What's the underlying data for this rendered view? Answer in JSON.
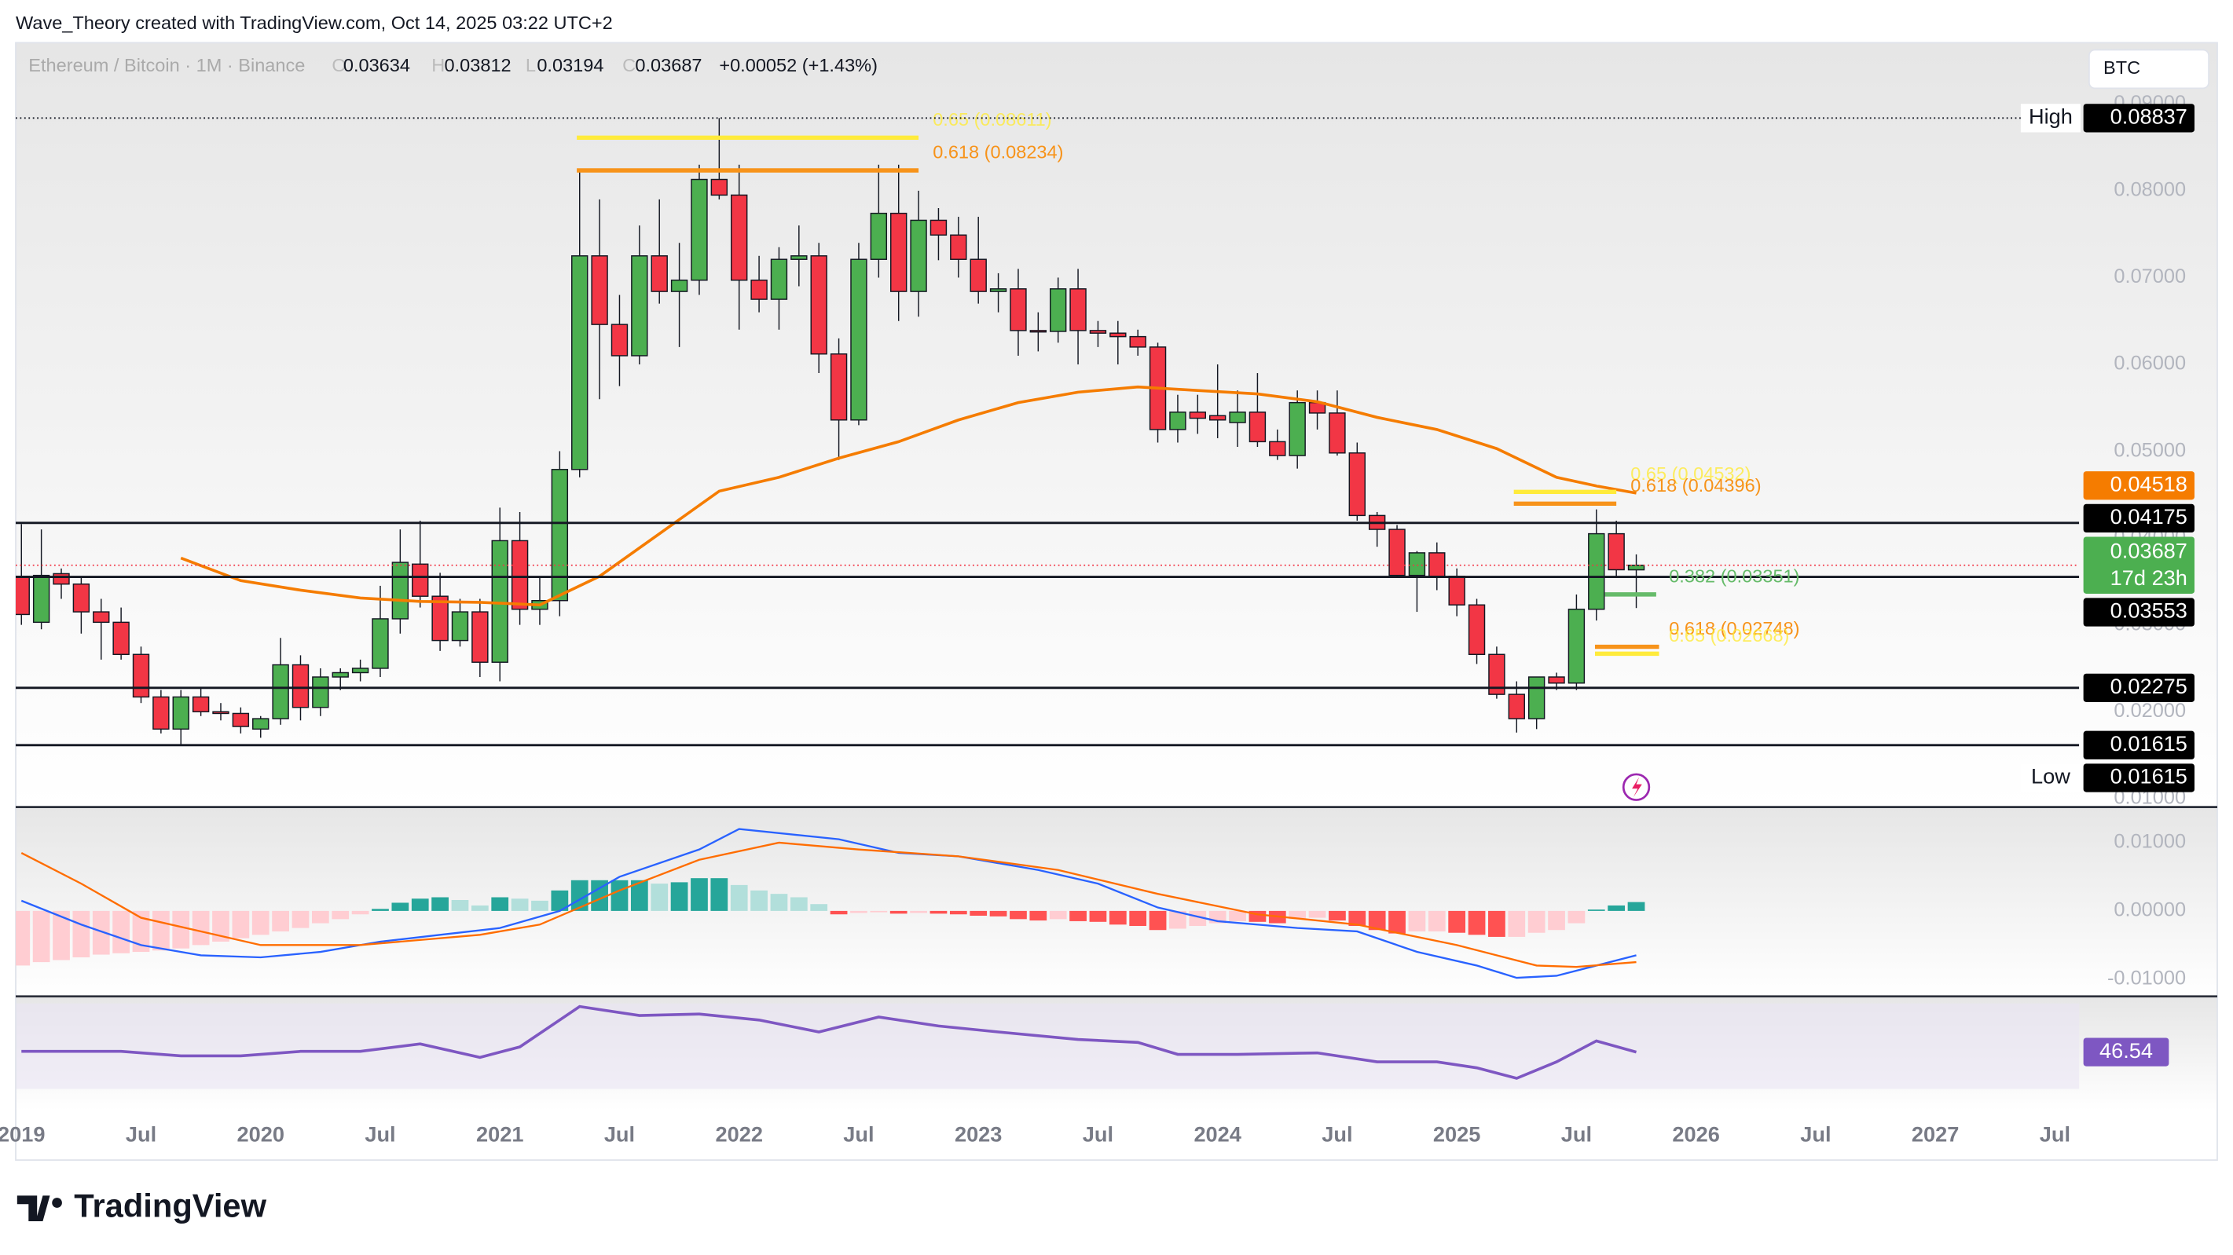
{
  "header": {
    "attribution": "Wave_Theory created with TradingView.com, Oct 14, 2025 03:22 UTC+2",
    "currency": "BTC",
    "logo": "TradingView"
  },
  "chart_data": [
    {
      "type": "candlestick",
      "symbol": "Ethereum / Bitcoin · 1M · Binance",
      "ohlc_labels": [
        "O",
        "H",
        "L",
        "C"
      ],
      "change": "+0.00052 (+1.43%)",
      "x": [
        "2019-01",
        "2019-02",
        "2019-03",
        "2019-04",
        "2019-05",
        "2019-06",
        "2019-07",
        "2019-08",
        "2019-09",
        "2019-10",
        "2019-11",
        "2019-12",
        "2020-01",
        "2020-02",
        "2020-03",
        "2020-04",
        "2020-05",
        "2020-06",
        "2020-07",
        "2020-08",
        "2020-09",
        "2020-10",
        "2020-11",
        "2020-12",
        "2021-01",
        "2021-02",
        "2021-03",
        "2021-04",
        "2021-05",
        "2021-06",
        "2021-07",
        "2021-08",
        "2021-09",
        "2021-10",
        "2021-11",
        "2021-12",
        "2022-01",
        "2022-02",
        "2022-03",
        "2022-04",
        "2022-05",
        "2022-06",
        "2022-07",
        "2022-08",
        "2022-09",
        "2022-10",
        "2022-11",
        "2022-12",
        "2023-01",
        "2023-02",
        "2023-03",
        "2023-04",
        "2023-05",
        "2023-06",
        "2023-07",
        "2023-08",
        "2023-09",
        "2023-10",
        "2023-11",
        "2023-12",
        "2024-01",
        "2024-02",
        "2024-03",
        "2024-04",
        "2024-05",
        "2024-06",
        "2024-07",
        "2024-08",
        "2024-09",
        "2024-10",
        "2024-11",
        "2024-12",
        "2025-01",
        "2025-02",
        "2025-03",
        "2025-04",
        "2025-05",
        "2025-06",
        "2025-07",
        "2025-08",
        "2025-09",
        "2025-10"
      ],
      "open": [
        0.0356,
        0.0303,
        0.0359,
        0.0347,
        0.0315,
        0.0303,
        0.0266,
        0.0217,
        0.018,
        0.0217,
        0.02,
        0.0198,
        0.018,
        0.0192,
        0.0254,
        0.0205,
        0.024,
        0.0245,
        0.025,
        0.0307,
        0.037,
        0.0333,
        0.0282,
        0.0315,
        0.0257,
        0.0397,
        0.0318,
        0.0328,
        0.0479,
        0.0725,
        0.0646,
        0.061,
        0.0725,
        0.0684,
        0.0697,
        0.0813,
        0.0795,
        0.0697,
        0.0675,
        0.0721,
        0.0725,
        0.0612,
        0.0536,
        0.0721,
        0.0774,
        0.0684,
        0.0766,
        0.0749,
        0.0721,
        0.0684,
        0.0687,
        0.0639,
        0.0638,
        0.0687,
        0.0639,
        0.0636,
        0.0632,
        0.062,
        0.0525,
        0.0545,
        0.0541,
        0.0533,
        0.0545,
        0.0511,
        0.0495,
        0.0556,
        0.0544,
        0.0498,
        0.0426,
        0.041,
        0.0357,
        0.0383,
        0.0356,
        0.0323,
        0.0266,
        0.022,
        0.0192,
        0.024,
        0.0233,
        0.0318,
        0.0405,
        0.03634
      ],
      "high": [
        0.0416,
        0.041,
        0.0365,
        0.0355,
        0.033,
        0.032,
        0.0275,
        0.0225,
        0.0225,
        0.0228,
        0.021,
        0.0205,
        0.0195,
        0.0285,
        0.0265,
        0.025,
        0.025,
        0.026,
        0.0345,
        0.041,
        0.042,
        0.036,
        0.033,
        0.033,
        0.0435,
        0.043,
        0.0355,
        0.05,
        0.0825,
        0.079,
        0.068,
        0.076,
        0.079,
        0.074,
        0.083,
        0.08837,
        0.083,
        0.0725,
        0.0735,
        0.076,
        0.074,
        0.063,
        0.074,
        0.083,
        0.083,
        0.08,
        0.078,
        0.077,
        0.077,
        0.0705,
        0.071,
        0.066,
        0.07,
        0.071,
        0.065,
        0.065,
        0.064,
        0.0625,
        0.0565,
        0.0565,
        0.06,
        0.057,
        0.059,
        0.0525,
        0.057,
        0.057,
        0.057,
        0.051,
        0.043,
        0.0415,
        0.0385,
        0.0395,
        0.0365,
        0.033,
        0.0275,
        0.0235,
        0.024,
        0.0245,
        0.0335,
        0.0433,
        0.042,
        0.03812
      ],
      "low": [
        0.03,
        0.0295,
        0.033,
        0.029,
        0.026,
        0.026,
        0.021,
        0.0175,
        0.01615,
        0.0195,
        0.019,
        0.0175,
        0.017,
        0.0185,
        0.019,
        0.0195,
        0.0225,
        0.0235,
        0.024,
        0.029,
        0.032,
        0.027,
        0.0275,
        0.024,
        0.0235,
        0.03,
        0.03,
        0.031,
        0.047,
        0.056,
        0.0575,
        0.06,
        0.067,
        0.062,
        0.068,
        0.079,
        0.064,
        0.066,
        0.064,
        0.069,
        0.059,
        0.049,
        0.053,
        0.07,
        0.065,
        0.0655,
        0.072,
        0.07,
        0.067,
        0.066,
        0.061,
        0.0615,
        0.0625,
        0.06,
        0.062,
        0.06,
        0.061,
        0.051,
        0.051,
        0.052,
        0.0515,
        0.0505,
        0.0505,
        0.049,
        0.048,
        0.0525,
        0.0495,
        0.042,
        0.039,
        0.0355,
        0.0315,
        0.034,
        0.031,
        0.0255,
        0.0215,
        0.0176,
        0.018,
        0.0225,
        0.0225,
        0.0305,
        0.0355,
        0.03194
      ],
      "close": [
        0.0312,
        0.0357,
        0.0347,
        0.0315,
        0.0303,
        0.0266,
        0.0217,
        0.018,
        0.0217,
        0.02,
        0.0198,
        0.0183,
        0.0192,
        0.0254,
        0.0205,
        0.024,
        0.0245,
        0.025,
        0.0307,
        0.0372,
        0.0333,
        0.0282,
        0.0315,
        0.0257,
        0.0397,
        0.0318,
        0.0328,
        0.0479,
        0.0725,
        0.0646,
        0.061,
        0.0725,
        0.0684,
        0.0697,
        0.0813,
        0.0795,
        0.0697,
        0.0675,
        0.0721,
        0.0725,
        0.0612,
        0.0536,
        0.0721,
        0.0774,
        0.0684,
        0.0766,
        0.0749,
        0.0721,
        0.0684,
        0.0687,
        0.0639,
        0.0638,
        0.0687,
        0.0639,
        0.0636,
        0.0632,
        0.062,
        0.0525,
        0.0545,
        0.0538,
        0.0536,
        0.0545,
        0.0511,
        0.0495,
        0.0556,
        0.0544,
        0.0498,
        0.0426,
        0.041,
        0.0357,
        0.0383,
        0.0356,
        0.0323,
        0.0266,
        0.022,
        0.0192,
        0.024,
        0.0233,
        0.0318,
        0.0405,
        0.03635,
        0.03687
      ],
      "up_color": "#4caf50",
      "down_color": "#f23645",
      "ylim": [
        0.00902,
        0.09705
      ],
      "yticks": [
        {
          "value": 0.09,
          "label": "0.09000"
        },
        {
          "value": 0.08,
          "label": "0.08000"
        },
        {
          "value": 0.07,
          "label": "0.07000"
        },
        {
          "value": 0.06,
          "label": "0.06000"
        },
        {
          "value": 0.05,
          "label": "0.05000"
        },
        {
          "value": 0.04,
          "label": "0.04000"
        },
        {
          "value": 0.03,
          "label": "0.03000"
        },
        {
          "value": 0.02,
          "label": "0.02000"
        },
        {
          "value": 0.01,
          "label": "0.01000"
        }
      ],
      "xlim": [
        "2019-01",
        "2027-08"
      ],
      "xticks": [
        {
          "value": "2019-01",
          "label": "2019"
        },
        {
          "value": "2019-07",
          "label": "Jul"
        },
        {
          "value": "2020-01",
          "label": "2020"
        },
        {
          "value": "2020-07",
          "label": "Jul"
        },
        {
          "value": "2021-01",
          "label": "2021"
        },
        {
          "value": "2021-07",
          "label": "Jul"
        },
        {
          "value": "2022-01",
          "label": "2022"
        },
        {
          "value": "2022-07",
          "label": "Jul"
        },
        {
          "value": "2023-01",
          "label": "2023"
        },
        {
          "value": "2023-07",
          "label": "Jul"
        },
        {
          "value": "2024-01",
          "label": "2024"
        },
        {
          "value": "2024-07",
          "label": "Jul"
        },
        {
          "value": "2025-01",
          "label": "2025"
        },
        {
          "value": "2025-07",
          "label": "Jul"
        },
        {
          "value": "2026-01",
          "label": "2026"
        },
        {
          "value": "2026-07",
          "label": "Jul"
        },
        {
          "value": "2027-01",
          "label": "2027"
        },
        {
          "value": "2027-07",
          "label": "Jul"
        }
      ],
      "lines": [
        {
          "color": "#f57c00",
          "x": [
            "2019-09",
            "2019-12",
            "2020-03",
            "2020-06",
            "2020-09",
            "2020-12",
            "2021-03",
            "2021-06",
            "2021-09",
            "2021-12",
            "2022-03",
            "2022-06",
            "2022-09",
            "2022-12",
            "2023-03",
            "2023-06",
            "2023-09",
            "2023-12",
            "2024-03",
            "2024-06",
            "2024-09",
            "2024-12",
            "2025-03",
            "2025-06",
            "2025-08",
            "2025-10"
          ],
          "values": [
            0.0377,
            0.0351,
            0.034,
            0.0331,
            0.0327,
            0.0326,
            0.0323,
            0.0356,
            0.0405,
            0.0454,
            0.047,
            0.0492,
            0.0511,
            0.0536,
            0.0556,
            0.0568,
            0.0574,
            0.057,
            0.0566,
            0.0557,
            0.0539,
            0.0525,
            0.0503,
            0.047,
            0.046,
            0.04518
          ]
        }
      ],
      "levels": [
        0.04175,
        0.03553,
        0.02275,
        0.01615
      ],
      "fib_levels": [
        {
          "label": "0.65 (0.08611)",
          "value": 0.08611,
          "color": "#ffeb3b"
        },
        {
          "label": "0.618 (0.08234)",
          "value": 0.08234,
          "color": "#f7931a"
        },
        {
          "label": "0.65 (0.04532)",
          "value": 0.04532,
          "color": "#ffeb3b"
        },
        {
          "label": "0.618 (0.04396)",
          "value": 0.04396,
          "color": "#f7931a"
        },
        {
          "label": "0.382 (0.03351)",
          "value": 0.03351,
          "color": "#66bb6a"
        },
        {
          "label": "0.618 (0.02748)",
          "value": 0.02748,
          "color": "#f7931a"
        },
        {
          "label": "0.65 (0.02668)",
          "value": 0.02668,
          "color": "#ffeb3b"
        }
      ],
      "price_labels": [
        {
          "value": 0.08837,
          "tag": "High",
          "color": "#000000"
        },
        {
          "value": 0.04518,
          "color": "#f57c00"
        },
        {
          "value": 0.04175,
          "color": "#000000"
        },
        {
          "value": 0.03687,
          "countdown": "17d 23h",
          "color": "#4caf50"
        },
        {
          "value": 0.03553,
          "color": "#000000"
        },
        {
          "value": 0.02275,
          "color": "#000000"
        },
        {
          "value": 0.01615,
          "color": "#000000"
        },
        {
          "value": 0.01615,
          "tag": "Low",
          "color": "#000000"
        }
      ]
    },
    {
      "type": "macd",
      "ylim": [
        -0.0121,
        0.0148
      ],
      "yticks": [
        {
          "value": 0.01,
          "label": "0.01000"
        },
        {
          "value": 0,
          "label": "0.00000"
        },
        {
          "value": -0.01,
          "label": "-0.01000"
        }
      ],
      "histogram": [
        -0.008,
        -0.0075,
        -0.0072,
        -0.0068,
        -0.0064,
        -0.0062,
        -0.006,
        -0.0058,
        -0.0055,
        -0.005,
        -0.0045,
        -0.004,
        -0.0035,
        -0.003,
        -0.0025,
        -0.0018,
        -0.0012,
        -0.0005,
        0.0003,
        0.0012,
        0.0018,
        0.002,
        0.0016,
        0.0008,
        0.002,
        0.0018,
        0.0015,
        0.003,
        0.0045,
        0.0045,
        0.0045,
        0.0045,
        0.004,
        0.0042,
        0.0048,
        0.0048,
        0.0038,
        0.003,
        0.0025,
        0.002,
        0.001,
        -0.0005,
        -0.0003,
        -0.0002,
        -0.0004,
        -0.0003,
        -0.0004,
        -0.0005,
        -0.0007,
        -0.0008,
        -0.0012,
        -0.0014,
        -0.0012,
        -0.0015,
        -0.0016,
        -0.002,
        -0.0022,
        -0.0028,
        -0.0026,
        -0.0022,
        -0.0018,
        -0.0015,
        -0.0016,
        -0.0018,
        -0.0012,
        -0.001,
        -0.0014,
        -0.0022,
        -0.0028,
        -0.0033,
        -0.003,
        -0.003,
        -0.0032,
        -0.0035,
        -0.0038,
        -0.0038,
        -0.0032,
        -0.0028,
        -0.0018,
        0.0002,
        0.0008,
        0.0013
      ],
      "histogram_colors": {
        "rising_above": "#26a69a",
        "falling_above": "#b2dfdb",
        "rising_below": "#ffcdd2",
        "falling_below": "#ff5252"
      },
      "series": [
        {
          "color": "#2962ff",
          "x": [
            "2019-01",
            "2019-04",
            "2019-07",
            "2019-10",
            "2020-01",
            "2020-04",
            "2020-07",
            "2020-10",
            "2021-01",
            "2021-04",
            "2021-07",
            "2021-11",
            "2022-01",
            "2022-06",
            "2022-09",
            "2022-12",
            "2023-04",
            "2023-07",
            "2023-10",
            "2024-01",
            "2024-05",
            "2024-08",
            "2024-11",
            "2025-02",
            "2025-04",
            "2025-06",
            "2025-10"
          ],
          "values": [
            0.0015,
            -0.002,
            -0.005,
            -0.0065,
            -0.0068,
            -0.006,
            -0.0045,
            -0.0035,
            -0.0025,
            0.0,
            0.005,
            0.009,
            0.012,
            0.0105,
            0.0085,
            0.008,
            0.006,
            0.004,
            0.0005,
            -0.0015,
            -0.0025,
            -0.003,
            -0.006,
            -0.008,
            -0.0098,
            -0.0095,
            -0.0065
          ]
        },
        {
          "color": "#ff6d00",
          "x": [
            "2019-01",
            "2019-04",
            "2019-07",
            "2020-01",
            "2020-06",
            "2020-12",
            "2021-03",
            "2021-07",
            "2021-11",
            "2022-03",
            "2022-07",
            "2022-12",
            "2023-05",
            "2023-10",
            "2024-03",
            "2024-08",
            "2025-01",
            "2025-05",
            "2025-07",
            "2025-10"
          ],
          "values": [
            0.0085,
            0.004,
            -0.001,
            -0.005,
            -0.005,
            -0.0035,
            -0.002,
            0.003,
            0.0075,
            0.01,
            0.009,
            0.008,
            0.006,
            0.0025,
            -0.0005,
            -0.002,
            -0.005,
            -0.008,
            -0.0082,
            -0.0075
          ]
        }
      ]
    },
    {
      "type": "line",
      "ylim": [
        20,
        80
      ],
      "color": "#7e57c2",
      "x": [
        "2019-01",
        "2019-06",
        "2019-09",
        "2019-12",
        "2020-03",
        "2020-06",
        "2020-09",
        "2020-12",
        "2021-02",
        "2021-05",
        "2021-08",
        "2021-11",
        "2022-02",
        "2022-05",
        "2022-08",
        "2022-11",
        "2023-02",
        "2023-06",
        "2023-09",
        "2023-11",
        "2024-02",
        "2024-06",
        "2024-09",
        "2024-12",
        "2025-02",
        "2025-04",
        "2025-06",
        "2025-08",
        "2025-10"
      ],
      "values": [
        47,
        47,
        44,
        44,
        47,
        47,
        52,
        43,
        50,
        77,
        71,
        72,
        68,
        60,
        70,
        64,
        60,
        55,
        53,
        45,
        45,
        46,
        40,
        40,
        36,
        29,
        40,
        54,
        46.54
      ]
    }
  ]
}
